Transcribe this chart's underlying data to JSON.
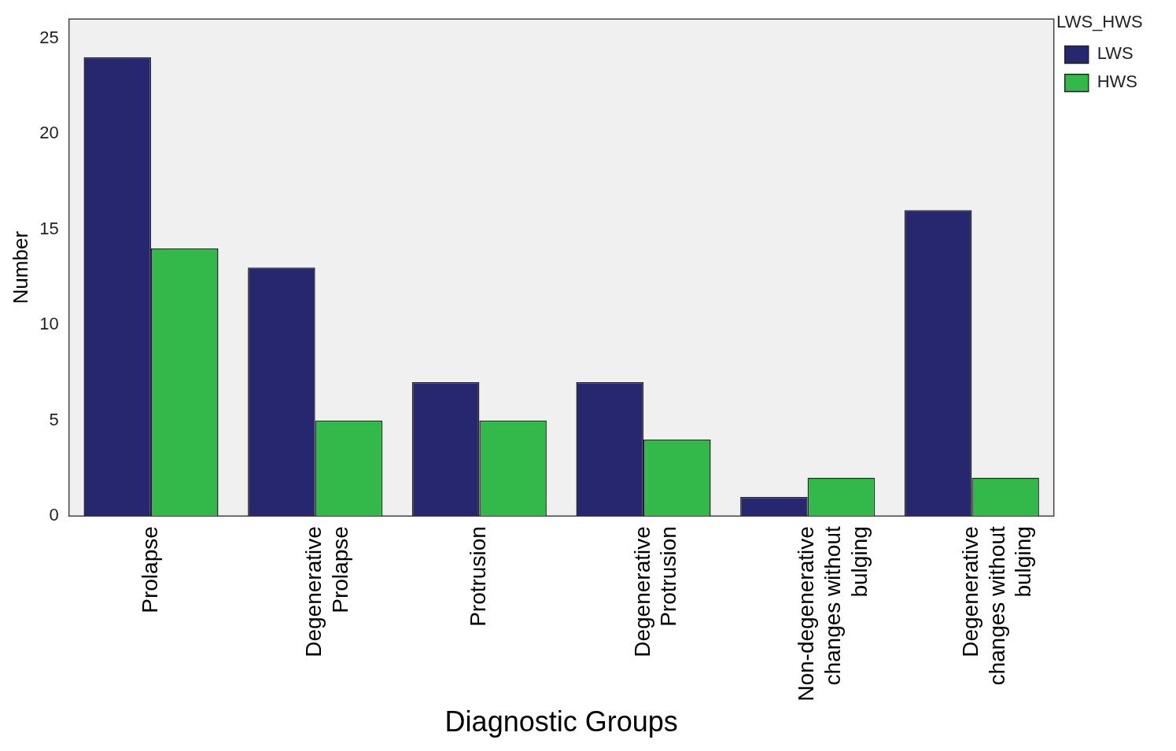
{
  "chart_data": {
    "type": "bar",
    "xlabel": "Diagnostic Groups",
    "ylabel": "Number",
    "legend_title": "LWS_HWS",
    "legend": "top right",
    "grid": false,
    "categories": [
      "Prolapse",
      "Degenerative Prolapse",
      "Protrusion",
      "Degenerative Protrusion",
      "Non-degenerative changes without bulging",
      "Degenerative changes without bulging"
    ],
    "series": [
      {
        "name": "LWS",
        "color": "#26276e",
        "values": [
          24,
          13,
          7,
          7,
          1,
          16
        ]
      },
      {
        "name": "HWS",
        "color": "#33b84a",
        "values": [
          14,
          5,
          5,
          4,
          2,
          2
        ]
      }
    ],
    "ylim": [
      0,
      26
    ],
    "yticks": [
      0,
      5,
      10,
      15,
      20,
      25
    ]
  }
}
